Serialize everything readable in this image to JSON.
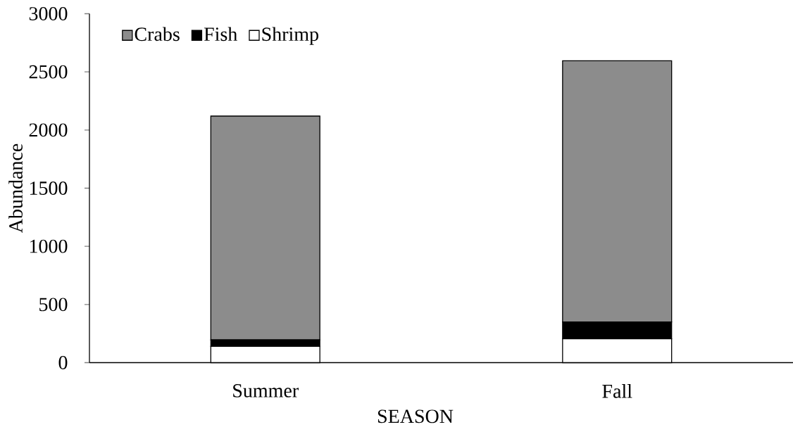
{
  "chart_data": {
    "type": "bar",
    "stacked": true,
    "xlabel": "SEASON",
    "ylabel": "Abundance",
    "categories": [
      "Summer",
      "Fall"
    ],
    "series": [
      {
        "name": "Shrimp",
        "color": "#ffffff",
        "values": [
          140,
          205
        ]
      },
      {
        "name": "Fish",
        "color": "#000000",
        "values": [
          55,
          145
        ]
      },
      {
        "name": "Crabs",
        "color": "#8c8c8c",
        "values": [
          1925,
          2245
        ]
      }
    ],
    "ylim": [
      0,
      3000
    ],
    "yticks": [
      0,
      500,
      1000,
      1500,
      2000,
      2500,
      3000
    ],
    "legend": "top left"
  }
}
